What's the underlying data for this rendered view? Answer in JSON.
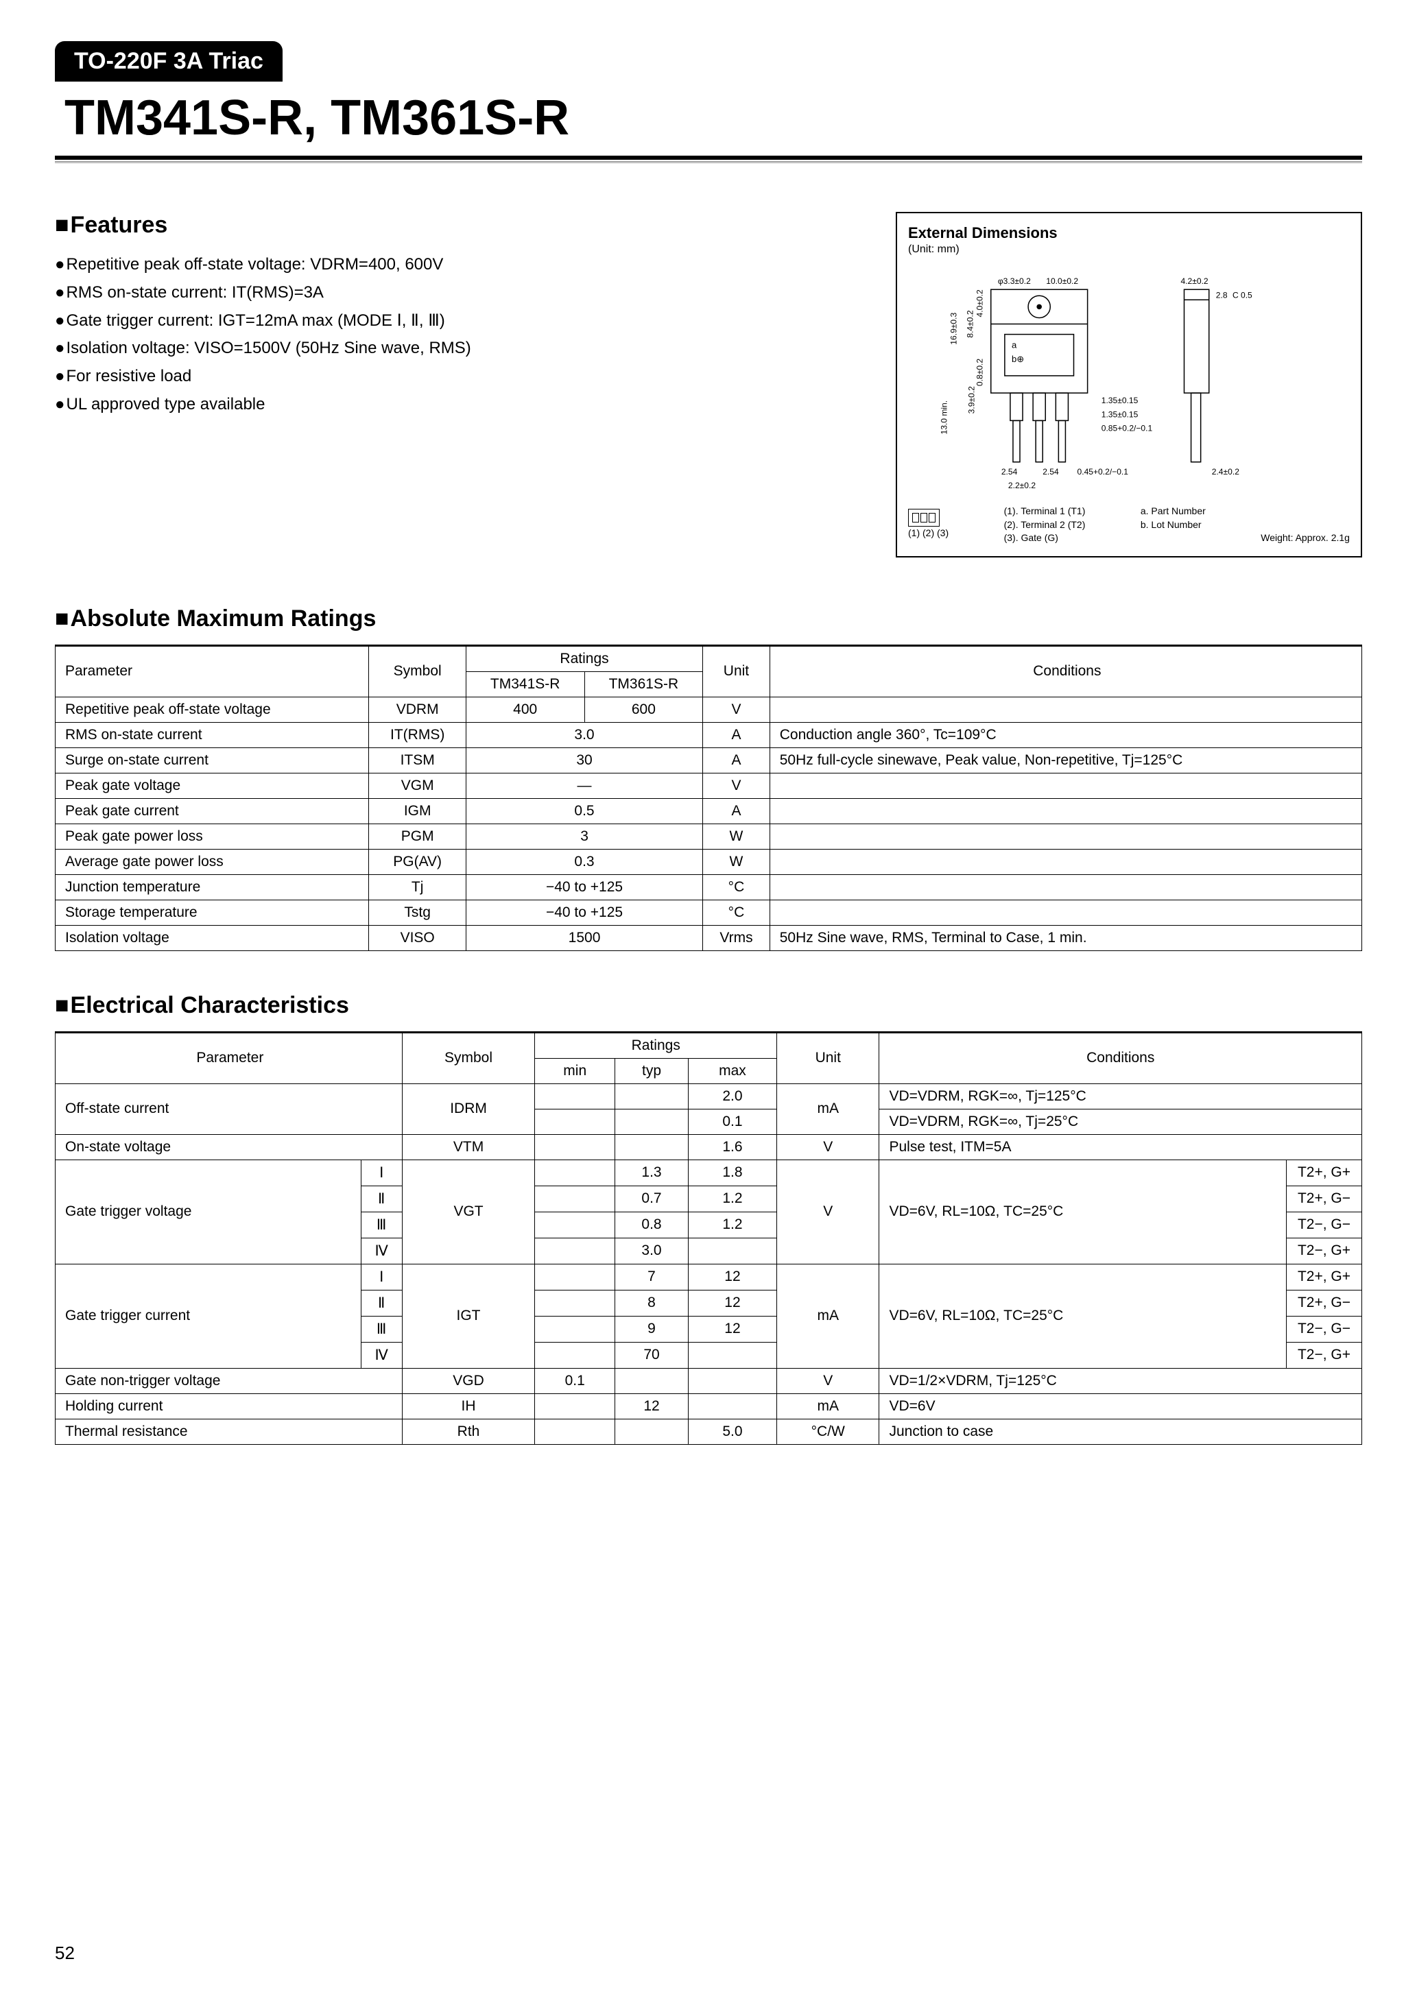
{
  "header": {
    "badge": "TO-220F 3A Triac",
    "title": "TM341S-R, TM361S-R"
  },
  "features": {
    "heading": "Features",
    "items": [
      "Repetitive peak off-state voltage: VDRM=400, 600V",
      "RMS on-state current: IT(RMS)=3A",
      "Gate trigger current: IGT=12mA max (MODE Ⅰ, Ⅱ, Ⅲ)",
      "Isolation voltage: VISO=1500V (50Hz Sine wave, RMS)",
      "For resistive load",
      "UL approved type available"
    ]
  },
  "diagram": {
    "title": "External Dimensions",
    "unit": "(Unit: mm)",
    "dims": {
      "hole_dia": "φ3.3±0.2",
      "width": "10.0±0.2",
      "tab_w": "4.2±0.2",
      "tab_t": "2.8",
      "chamfer": "C 0.5",
      "height": "16.9±0.3",
      "body_h": "8.4±0.2",
      "hole_y": "4.0±0.2",
      "mark_h": "0.8±0.2",
      "pin_total": "13.0 min.",
      "pin_wide": "3.9±0.2",
      "pin_pitch": "2.54",
      "pin_w1": "1.35±0.15",
      "pin_w2": "1.35±0.15",
      "pin_t": "0.85+0.2/−0.1",
      "pin_narrow": "0.45+0.2/−0.1",
      "overall_t": "2.4±0.2",
      "gap": "2.2±0.2"
    },
    "legend": {
      "t1": "(1). Terminal 1 (T1)",
      "t2": "(2). Terminal 2 (T2)",
      "t3": "(3). Gate (G)",
      "a": "a. Part Number",
      "b": "b. Lot Number",
      "pins": "(1) (2) (3)",
      "weight": "Weight: Approx. 2.1g"
    }
  },
  "amr": {
    "heading": "Absolute Maximum Ratings",
    "cols": {
      "param": "Parameter",
      "symbol": "Symbol",
      "ratings": "Ratings",
      "m1": "TM341S-R",
      "m2": "TM361S-R",
      "unit": "Unit",
      "cond": "Conditions"
    },
    "rows": [
      {
        "param": "Repetitive peak off-state voltage",
        "symbol": "VDRM",
        "r1": "400",
        "r2": "600",
        "unit": "V",
        "cond": ""
      },
      {
        "param": "RMS on-state current",
        "symbol": "IT(RMS)",
        "r": "3.0",
        "unit": "A",
        "cond": "Conduction angle 360°, Tc=109°C"
      },
      {
        "param": "Surge on-state current",
        "symbol": "ITSM",
        "r": "30",
        "unit": "A",
        "cond": "50Hz full-cycle sinewave, Peak value, Non-repetitive, Tj=125°C"
      },
      {
        "param": "Peak gate voltage",
        "symbol": "VGM",
        "r": "—",
        "unit": "V",
        "cond": ""
      },
      {
        "param": "Peak gate current",
        "symbol": "IGM",
        "r": "0.5",
        "unit": "A",
        "cond": ""
      },
      {
        "param": "Peak gate power loss",
        "symbol": "PGM",
        "r": "3",
        "unit": "W",
        "cond": ""
      },
      {
        "param": "Average gate power loss",
        "symbol": "PG(AV)",
        "r": "0.3",
        "unit": "W",
        "cond": ""
      },
      {
        "param": "Junction temperature",
        "symbol": "Tj",
        "r": "−40 to +125",
        "unit": "°C",
        "cond": ""
      },
      {
        "param": "Storage temperature",
        "symbol": "Tstg",
        "r": "−40 to +125",
        "unit": "°C",
        "cond": ""
      },
      {
        "param": "Isolation voltage",
        "symbol": "VISO",
        "r": "1500",
        "unit": "Vrms",
        "cond": "50Hz Sine wave, RMS, Terminal to Case, 1 min."
      }
    ]
  },
  "ec": {
    "heading": "Electrical Characteristics",
    "cols": {
      "param": "Parameter",
      "symbol": "Symbol",
      "ratings": "Ratings",
      "min": "min",
      "typ": "typ",
      "max": "max",
      "unit": "Unit",
      "cond": "Conditions"
    },
    "rows": [
      {
        "param": "Off-state current",
        "mode": "",
        "symbol": "IDRM",
        "min": "",
        "typ": "",
        "max": "2.0",
        "unit": "mA",
        "cond": "VD=VDRM, RGK=∞, Tj=125°C",
        "span": 2
      },
      {
        "param": "",
        "mode": "",
        "symbol": "",
        "min": "",
        "typ": "",
        "max": "0.1",
        "unit": "",
        "cond": "VD=VDRM, RGK=∞, Tj=25°C"
      },
      {
        "param": "On-state voltage",
        "mode": "",
        "symbol": "VTM",
        "min": "",
        "typ": "",
        "max": "1.6",
        "unit": "V",
        "cond": "Pulse test, ITM=5A"
      },
      {
        "param": "Gate trigger voltage",
        "mode": "Ⅰ",
        "symbol": "VGT",
        "min": "",
        "typ": "1.3",
        "max": "1.8",
        "unit": "V",
        "cond": "VD=6V, RL=10Ω, TC=25°C",
        "q": "T2+, G+",
        "span": 4
      },
      {
        "param": "",
        "mode": "Ⅱ",
        "symbol": "",
        "min": "",
        "typ": "0.7",
        "max": "1.2",
        "unit": "",
        "cond": "",
        "q": "T2+, G−"
      },
      {
        "param": "",
        "mode": "Ⅲ",
        "symbol": "",
        "min": "",
        "typ": "0.8",
        "max": "1.2",
        "unit": "",
        "cond": "",
        "q": "T2−, G−"
      },
      {
        "param": "",
        "mode": "Ⅳ",
        "symbol": "",
        "min": "",
        "typ": "3.0",
        "max": "",
        "unit": "",
        "cond": "",
        "q": "T2−, G+"
      },
      {
        "param": "Gate trigger current",
        "mode": "Ⅰ",
        "symbol": "IGT",
        "min": "",
        "typ": "7",
        "max": "12",
        "unit": "mA",
        "cond": "VD=6V, RL=10Ω, TC=25°C",
        "q": "T2+, G+",
        "span": 4
      },
      {
        "param": "",
        "mode": "Ⅱ",
        "symbol": "",
        "min": "",
        "typ": "8",
        "max": "12",
        "unit": "",
        "cond": "",
        "q": "T2+, G−"
      },
      {
        "param": "",
        "mode": "Ⅲ",
        "symbol": "",
        "min": "",
        "typ": "9",
        "max": "12",
        "unit": "",
        "cond": "",
        "q": "T2−, G−"
      },
      {
        "param": "",
        "mode": "Ⅳ",
        "symbol": "",
        "min": "",
        "typ": "70",
        "max": "",
        "unit": "",
        "cond": "",
        "q": "T2−, G+"
      },
      {
        "param": "Gate non-trigger voltage",
        "mode": "",
        "symbol": "VGD",
        "min": "0.1",
        "typ": "",
        "max": "",
        "unit": "V",
        "cond": "VD=1/2×VDRM, Tj=125°C"
      },
      {
        "param": "Holding current",
        "mode": "",
        "symbol": "IH",
        "min": "",
        "typ": "12",
        "max": "",
        "unit": "mA",
        "cond": "VD=6V"
      },
      {
        "param": "Thermal resistance",
        "mode": "",
        "symbol": "Rth",
        "min": "",
        "typ": "",
        "max": "5.0",
        "unit": "°C/W",
        "cond": "Junction to case"
      }
    ]
  },
  "page": "52"
}
